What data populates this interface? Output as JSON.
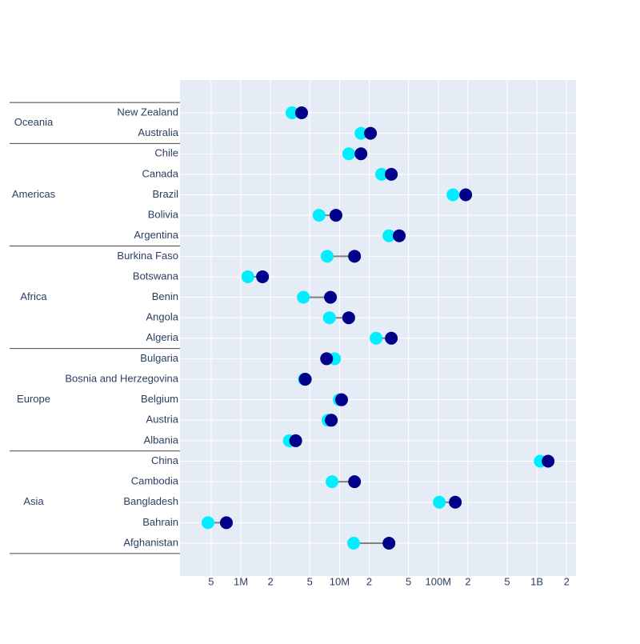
{
  "chart_data": {
    "type": "dumbbell",
    "log_x": true,
    "grid": true,
    "xlim": [
      242000,
      2490000000
    ],
    "xticks": [
      {
        "value": 500000,
        "label": "5"
      },
      {
        "value": 1000000,
        "label": "1M"
      },
      {
        "value": 2000000,
        "label": "2"
      },
      {
        "value": 5000000,
        "label": "5"
      },
      {
        "value": 10000000,
        "label": "10M"
      },
      {
        "value": 20000000,
        "label": "2"
      },
      {
        "value": 50000000,
        "label": "5"
      },
      {
        "value": 100000000,
        "label": "100M"
      },
      {
        "value": 200000000,
        "label": "2"
      },
      {
        "value": 500000000,
        "label": "5"
      },
      {
        "value": 1000000000,
        "label": "1B"
      },
      {
        "value": 2000000000,
        "label": "2"
      }
    ],
    "groups": [
      {
        "name": "Asia",
        "categories": [
          "Afghanistan",
          "Bahrain",
          "Bangladesh",
          "Cambodia",
          "China"
        ]
      },
      {
        "name": "Europe",
        "categories": [
          "Albania",
          "Austria",
          "Belgium",
          "Bosnia and Herzegovina",
          "Bulgaria"
        ]
      },
      {
        "name": "Africa",
        "categories": [
          "Algeria",
          "Angola",
          "Benin",
          "Botswana",
          "Burkina Faso"
        ]
      },
      {
        "name": "Americas",
        "categories": [
          "Argentina",
          "Bolivia",
          "Brazil",
          "Canada",
          "Chile"
        ]
      },
      {
        "name": "Oceania",
        "categories": [
          "Australia",
          "New Zealand"
        ]
      }
    ],
    "line_color": "#808080",
    "series": [
      {
        "color": "#00eeff",
        "values": [
          13900000,
          465000,
          102600000,
          8400000,
          1080000000,
          3100000,
          7650000,
          9950000,
          4400000,
          8900000,
          23500000,
          7900000,
          4300000,
          1180000,
          7500000,
          31700000,
          6200000,
          141000000,
          26700000,
          12400000,
          16500000,
          3300000
        ]
      },
      {
        "color": "#00008b",
        "values": [
          31700000,
          714000,
          149000000,
          14200000,
          1300000000,
          3600000,
          8260000,
          10500000,
          4500000,
          7400000,
          33500000,
          12400000,
          8100000,
          1660000,
          14200000,
          40300000,
          9200000,
          190000000,
          33500000,
          16500000,
          20600000,
          4130000
        ]
      }
    ]
  }
}
